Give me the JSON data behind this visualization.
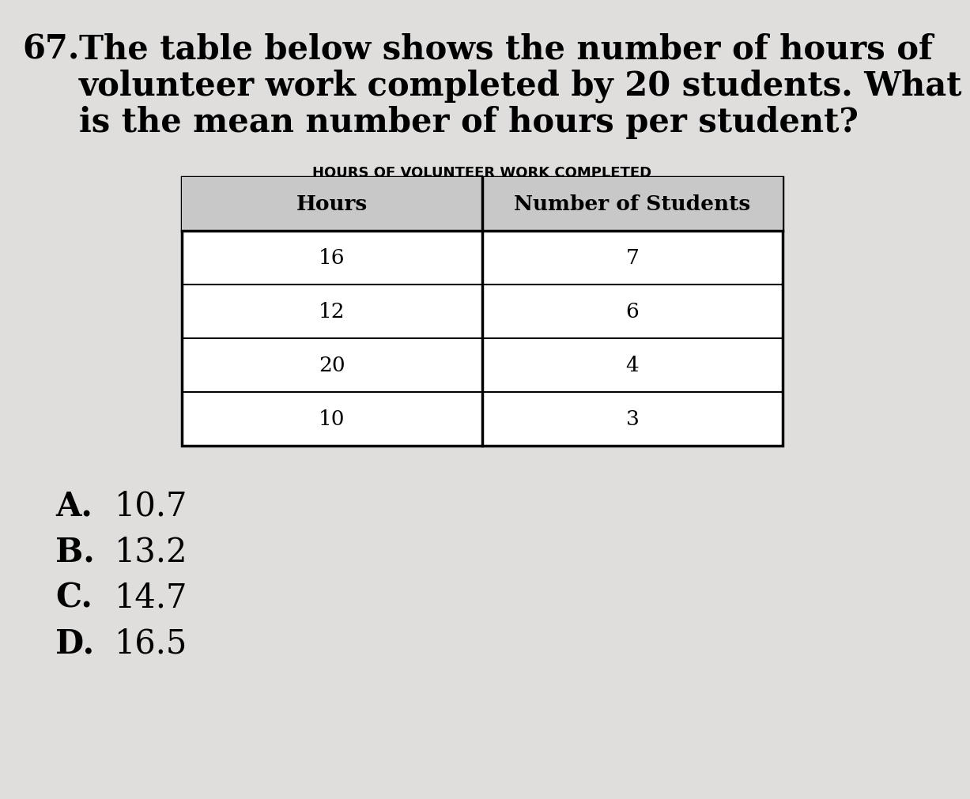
{
  "question_number": "67.",
  "question_text_line1": "The table below shows the number of hours of",
  "question_text_line2": "volunteer work completed by 20 students. What",
  "question_text_line3": "is the mean number of hours per student?",
  "table_title": "HOURS OF VOLUNTEER WORK COMPLETED",
  "col_headers": [
    "Hours",
    "Number of Students"
  ],
  "table_data": [
    [
      "16",
      "7"
    ],
    [
      "12",
      "6"
    ],
    [
      "20",
      "4"
    ],
    [
      "10",
      "3"
    ]
  ],
  "answer_choices": [
    [
      "A.",
      "10.7"
    ],
    [
      "B.",
      "13.2"
    ],
    [
      "C.",
      "14.7"
    ],
    [
      "D.",
      "16.5"
    ]
  ],
  "bg_color": "#e0dedd",
  "table_white": "#ffffff",
  "table_header_bg": "#c8c8c8",
  "text_color": "#000000",
  "question_fontsize": 30,
  "table_title_fontsize": 13,
  "header_fontsize": 19,
  "data_fontsize": 19,
  "answer_fontsize": 30
}
